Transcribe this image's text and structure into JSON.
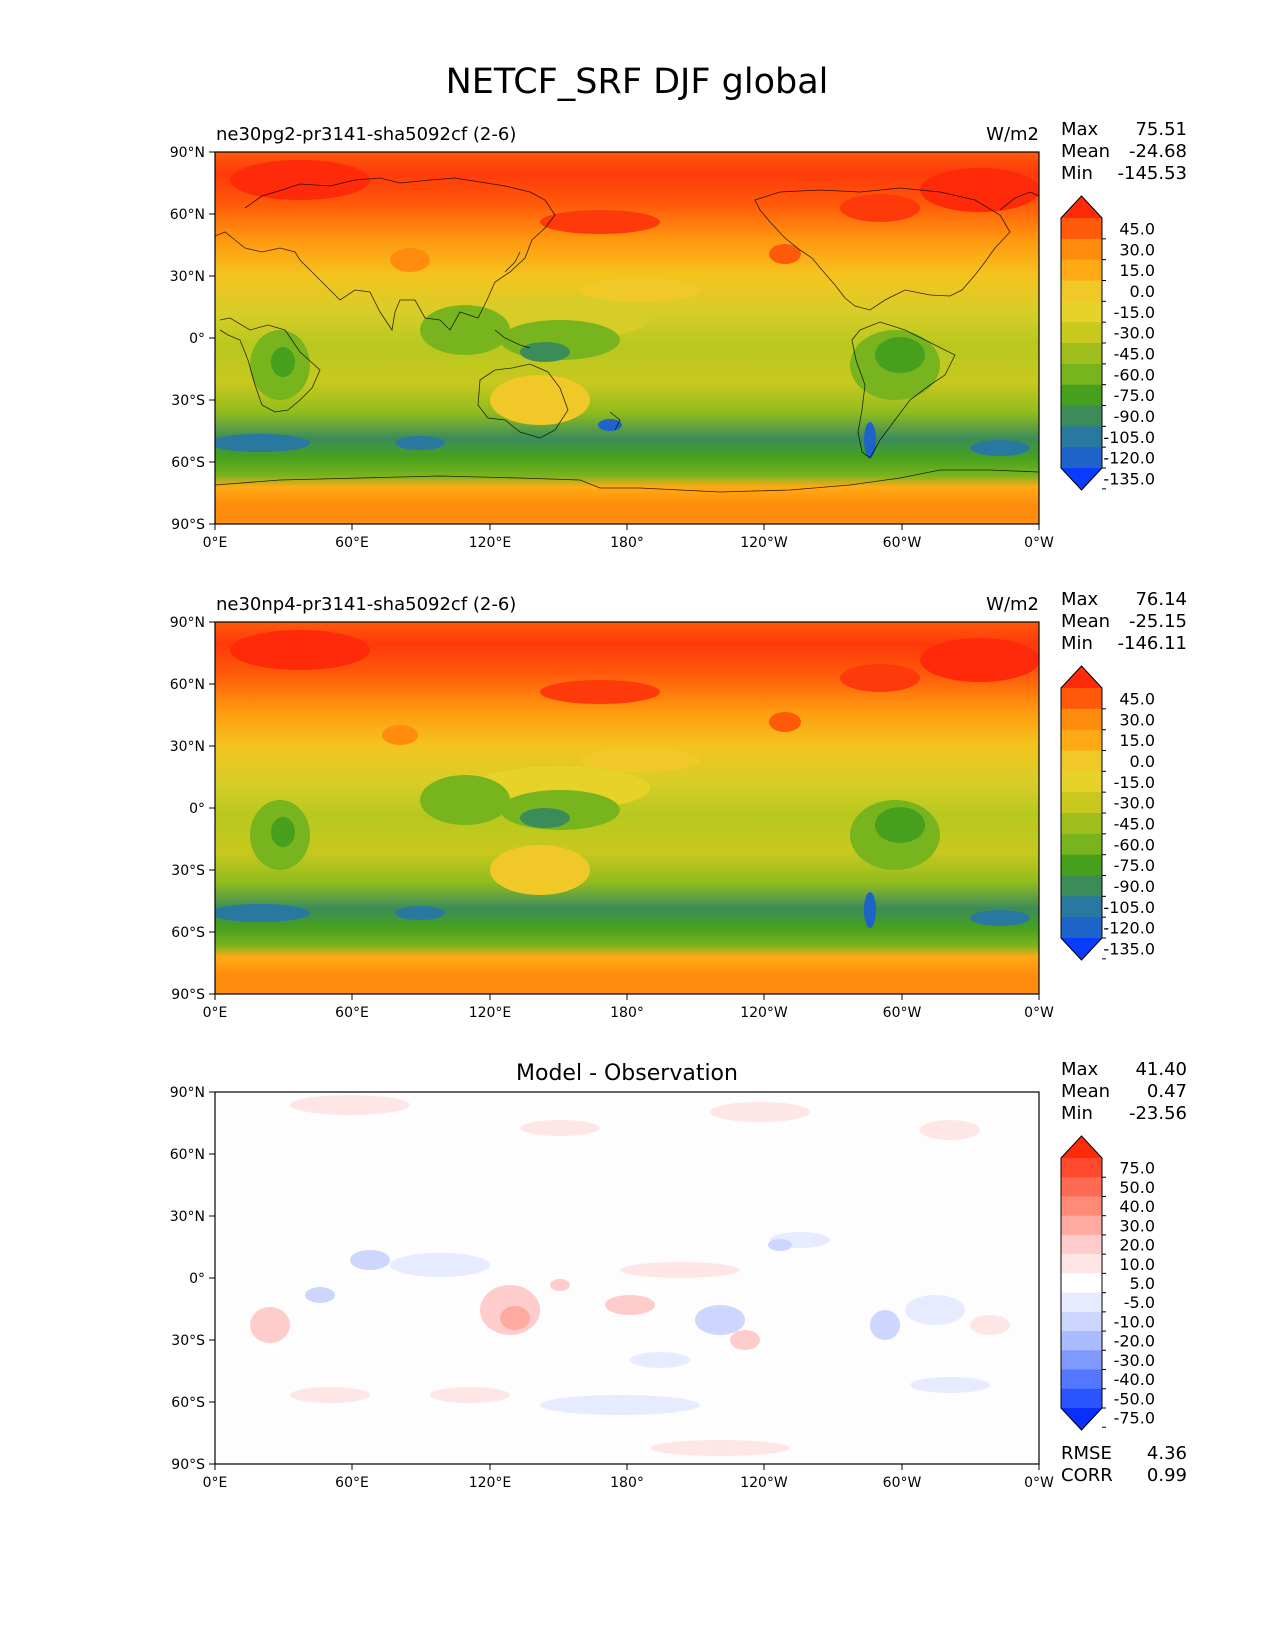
{
  "figure_title": "NETCF_SRF DJF global",
  "chart_data": [
    {
      "type": "heatmap",
      "projection": "equirectangular",
      "title_left": "ne30pg2-pr3141-sha5092cf (2-6)",
      "units": "W/m2",
      "stats": [
        {
          "label": "Max",
          "value": "75.51"
        },
        {
          "label": "Mean",
          "value": "-24.68"
        },
        {
          "label": "Min",
          "value": "-145.53"
        }
      ],
      "colorbar": {
        "levels": [
          "45.0",
          "30.0",
          "15.0",
          "0.0",
          "-15.0",
          "-30.0",
          "-45.0",
          "-60.0",
          "-75.0",
          "-90.0",
          "-105.0",
          "-120.0",
          "-135.0"
        ],
        "colors": [
          "#ff2a0a",
          "#ff5a0a",
          "#ff8c0d",
          "#ffaa14",
          "#f0c828",
          "#e6d228",
          "#c8c81e",
          "#a0be1e",
          "#78b41e",
          "#46a01e",
          "#3c8c5a",
          "#2878a0",
          "#1e64c8",
          "#0a3cff"
        ]
      },
      "xticks": [
        "0°E",
        "60°E",
        "120°E",
        "180°",
        "120°W",
        "60°W",
        "0°W"
      ],
      "yticks": [
        "90°N",
        "60°N",
        "30°N",
        "0°",
        "30°S",
        "60°S",
        "90°S"
      ]
    },
    {
      "type": "heatmap",
      "projection": "equirectangular",
      "title_left": "ne30np4-pr3141-sha5092cf (2-6)",
      "units": "W/m2",
      "stats": [
        {
          "label": "Max",
          "value": "76.14"
        },
        {
          "label": "Mean",
          "value": "-25.15"
        },
        {
          "label": "Min",
          "value": "-146.11"
        }
      ],
      "colorbar": {
        "levels": [
          "45.0",
          "30.0",
          "15.0",
          "0.0",
          "-15.0",
          "-30.0",
          "-45.0",
          "-60.0",
          "-75.0",
          "-90.0",
          "-105.0",
          "-120.0",
          "-135.0"
        ],
        "colors": [
          "#ff2a0a",
          "#ff5a0a",
          "#ff8c0d",
          "#ffaa14",
          "#f0c828",
          "#e6d228",
          "#c8c81e",
          "#a0be1e",
          "#78b41e",
          "#46a01e",
          "#3c8c5a",
          "#2878a0",
          "#1e64c8",
          "#0a3cff"
        ]
      },
      "xticks": [
        "0°E",
        "60°E",
        "120°E",
        "180°",
        "120°W",
        "60°W",
        "0°W"
      ],
      "yticks": [
        "90°N",
        "60°N",
        "30°N",
        "0°",
        "30°S",
        "60°S",
        "90°S"
      ]
    },
    {
      "type": "heatmap",
      "projection": "equirectangular",
      "title_center": "Model - Observation",
      "stats": [
        {
          "label": "Max",
          "value": "41.40"
        },
        {
          "label": "Mean",
          "value": "0.47"
        },
        {
          "label": "Min",
          "value": "-23.56"
        }
      ],
      "metrics": [
        {
          "label": "RMSE",
          "value": "4.36"
        },
        {
          "label": "CORR",
          "value": "0.99"
        }
      ],
      "colorbar": {
        "levels": [
          "75.0",
          "50.0",
          "40.0",
          "30.0",
          "20.0",
          "10.0",
          "5.0",
          "-5.0",
          "-10.0",
          "-20.0",
          "-30.0",
          "-40.0",
          "-50.0",
          "-75.0"
        ],
        "colors": [
          "#ff2a0a",
          "#ff4a30",
          "#ff6a55",
          "#ff8a78",
          "#ffaaa0",
          "#ffcccc",
          "#ffe6e6",
          "#ffffff",
          "#e6ebff",
          "#ccd6ff",
          "#aabbff",
          "#8099ff",
          "#5577ff",
          "#2a55ff",
          "#0a30ff"
        ]
      },
      "xticks": [
        "0°E",
        "60°E",
        "120°E",
        "180°",
        "120°W",
        "60°W",
        "0°W"
      ],
      "yticks": [
        "90°N",
        "60°N",
        "30°N",
        "0°",
        "30°S",
        "60°S",
        "90°S"
      ]
    }
  ]
}
